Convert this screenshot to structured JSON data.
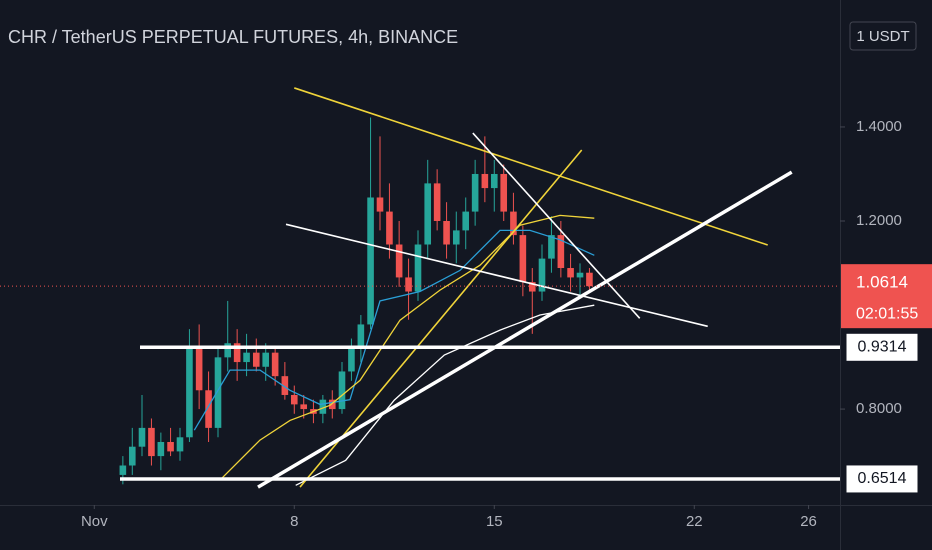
{
  "chart_data": {
    "type": "candlestick",
    "title": "CHR / TetherUS PERPETUAL FUTURES, 4h, BINANCE",
    "currency": "1 USDT",
    "up_color": "#26a69a",
    "down_color": "#ef5350",
    "x": [
      2.0,
      2.33,
      2.67,
      3.0,
      3.33,
      3.67,
      4.0,
      4.33,
      4.67,
      5.0,
      5.33,
      5.67,
      6.0,
      6.33,
      6.67,
      7.0,
      7.33,
      7.67,
      8.0,
      8.33,
      8.67,
      9.0,
      9.33,
      9.67,
      10.0,
      10.33,
      10.67,
      11.0,
      11.33,
      11.67,
      12.0,
      12.33,
      12.67,
      13.0,
      13.33,
      13.67,
      14.0,
      14.33,
      14.67,
      15.0,
      15.33,
      15.67,
      16.0,
      16.33,
      16.67,
      17.0,
      17.33,
      17.67,
      18.0,
      18.33
    ],
    "open": [
      0.66,
      0.68,
      0.72,
      0.76,
      0.7,
      0.73,
      0.71,
      0.74,
      0.93,
      0.84,
      0.76,
      0.91,
      0.94,
      0.9,
      0.92,
      0.89,
      0.92,
      0.87,
      0.83,
      0.81,
      0.8,
      0.79,
      0.82,
      0.8,
      0.88,
      0.93,
      0.98,
      1.25,
      1.22,
      1.15,
      1.08,
      1.05,
      1.15,
      1.28,
      1.2,
      1.15,
      1.18,
      1.22,
      1.3,
      1.27,
      1.3,
      1.22,
      1.17,
      1.07,
      1.05,
      1.12,
      1.17,
      1.1,
      1.08,
      1.09
    ],
    "high": [
      0.7,
      0.76,
      0.83,
      0.78,
      0.75,
      0.76,
      0.76,
      0.97,
      0.98,
      0.88,
      0.93,
      1.03,
      0.97,
      0.96,
      0.95,
      0.94,
      0.93,
      0.9,
      0.85,
      0.83,
      0.82,
      0.83,
      0.84,
      0.9,
      0.95,
      1.0,
      1.42,
      1.38,
      1.28,
      1.2,
      1.12,
      1.18,
      1.33,
      1.31,
      1.24,
      1.22,
      1.25,
      1.33,
      1.38,
      1.33,
      1.32,
      1.26,
      1.19,
      1.1,
      1.15,
      1.21,
      1.2,
      1.13,
      1.11,
      1.1
    ],
    "low": [
      0.64,
      0.66,
      0.7,
      0.68,
      0.67,
      0.7,
      0.69,
      0.73,
      0.8,
      0.73,
      0.74,
      0.88,
      0.86,
      0.87,
      0.88,
      0.86,
      0.85,
      0.82,
      0.79,
      0.78,
      0.77,
      0.77,
      0.78,
      0.79,
      0.86,
      0.9,
      0.97,
      1.18,
      1.12,
      1.06,
      0.99,
      1.03,
      1.12,
      1.18,
      1.12,
      1.11,
      1.14,
      1.19,
      1.24,
      1.22,
      1.2,
      1.15,
      1.04,
      0.96,
      1.03,
      1.09,
      1.08,
      1.05,
      1.04,
      1.05
    ],
    "close": [
      0.68,
      0.72,
      0.76,
      0.7,
      0.73,
      0.71,
      0.74,
      0.93,
      0.84,
      0.76,
      0.91,
      0.94,
      0.9,
      0.92,
      0.89,
      0.92,
      0.87,
      0.83,
      0.81,
      0.8,
      0.79,
      0.82,
      0.8,
      0.88,
      0.93,
      0.98,
      1.25,
      1.22,
      1.15,
      1.08,
      1.05,
      1.15,
      1.28,
      1.2,
      1.15,
      1.18,
      1.22,
      1.3,
      1.27,
      1.3,
      1.22,
      1.17,
      1.07,
      1.05,
      1.12,
      1.17,
      1.1,
      1.08,
      1.09,
      1.0614
    ],
    "moving_averages": [
      {
        "color": "#2a9fd6",
        "x": [
          4.5,
          5.75,
          6.8,
          7.85,
          8.9,
          9.95,
          11.0,
          12.4,
          13.8,
          15.2,
          16.25,
          17.3,
          18.5
        ],
        "values": [
          0.755,
          0.883,
          0.883,
          0.84,
          0.81,
          0.82,
          1.03,
          1.05,
          1.095,
          1.18,
          1.18,
          1.16,
          1.127
        ]
      },
      {
        "color": "#f0d43a",
        "x": [
          5.4,
          6.8,
          7.85,
          9.25,
          10.3,
          11.7,
          13.1,
          14.5,
          15.9,
          17.3,
          18.5
        ],
        "values": [
          0.649,
          0.734,
          0.776,
          0.808,
          0.861,
          0.989,
          1.053,
          1.106,
          1.191,
          1.212,
          1.206
        ]
      },
      {
        "color": "#ffffff",
        "x": [
          8.05,
          9.8,
          11.5,
          13.25,
          15.2,
          16.6,
          18.5
        ],
        "values": [
          0.638,
          0.691,
          0.819,
          0.915,
          0.968,
          1.0,
          1.021
        ]
      }
    ],
    "drawings": [
      {
        "color": "#f0d43a",
        "x": [
          8.0,
          24.57
        ],
        "y": [
          1.483,
          1.149
        ]
      },
      {
        "color": "#f0d43a",
        "x": [
          8.2,
          18.06
        ],
        "y": [
          0.634,
          1.351
        ]
      },
      {
        "color": "#ffffff",
        "x": [
          14.25,
          20.09
        ],
        "y": [
          1.387,
          0.993
        ]
      },
      {
        "color": "#ffffff",
        "x": [
          7.71,
          22.47
        ],
        "y": [
          1.193,
          0.976
        ]
      },
      {
        "color": "#ffffff",
        "x": [
          6.73,
          25.41
        ],
        "y": [
          0.634,
          1.304
        ],
        "thick": true
      }
    ],
    "levels": [
      {
        "value": 0.9314,
        "start": 2.6
      },
      {
        "value": 0.6514,
        "start": 1.9
      }
    ],
    "last_price": 1.0614,
    "countdown": "02:01:55",
    "xlim": [
      -2.3,
      27.1
    ],
    "ylim": [
      0.596,
      1.67
    ],
    "xticks": [
      {
        "value": 1,
        "label": "Nov"
      },
      8,
      15,
      22,
      26
    ],
    "yticks": [
      {
        "value": 0.8,
        "label": "0.8000"
      },
      {
        "value": 1.2,
        "label": "1.2000"
      },
      {
        "value": 1.4,
        "label": "1.4000"
      }
    ]
  }
}
